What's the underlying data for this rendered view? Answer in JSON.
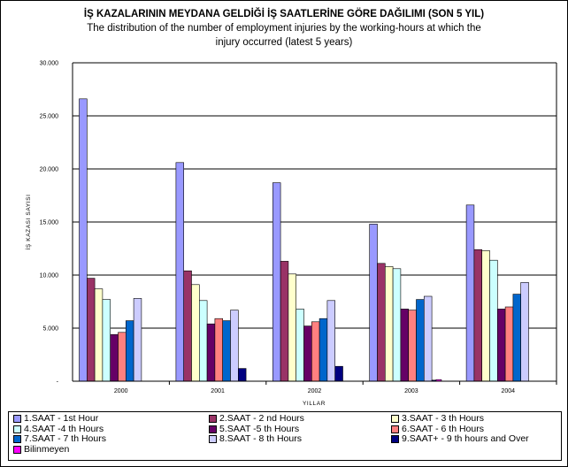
{
  "chart_data": {
    "type": "bar",
    "title": "İŞ KAZALARININ MEYDANA GELDİĞİ İŞ SAATLERİNE GÖRE DAĞILIMI (SON 5 YIL)",
    "subtitle_line1": "The distribution of the number of employment injuries by the working-hours at which the",
    "subtitle_line2": "injury occurred (latest 5 years)",
    "xlabel": "YILLAR",
    "ylabel": "İŞ KAZASI SAYISI",
    "ylim": [
      0,
      30000
    ],
    "yticks": [
      "-",
      "5.000",
      "10.000",
      "15.000",
      "20.000",
      "25.000",
      "30.000"
    ],
    "grid": true,
    "legend_position": "bottom",
    "categories": [
      "2000",
      "2001",
      "2002",
      "2003",
      "2004"
    ],
    "series": [
      {
        "name": "1.SAAT - 1st Hour",
        "color": "#9999ff",
        "values": [
          26600,
          20600,
          18700,
          14800,
          16600
        ]
      },
      {
        "name": "2.SAAT - 2 nd Hours",
        "color": "#993366",
        "values": [
          9700,
          10400,
          11300,
          11100,
          12400
        ]
      },
      {
        "name": "3.SAAT - 3 th Hours",
        "color": "#ffffcc",
        "values": [
          8700,
          9100,
          10100,
          10800,
          12300
        ]
      },
      {
        "name": "4.SAAT -4 th  Hours",
        "color": "#ccffff",
        "values": [
          7700,
          7600,
          6800,
          10600,
          11400
        ]
      },
      {
        "name": "5.SAAT -5 th  Hours",
        "color": "#660066",
        "values": [
          4400,
          5400,
          5200,
          6800,
          6800
        ]
      },
      {
        "name": "6.SAAT - 6 th  Hours",
        "color": "#ff8080",
        "values": [
          4600,
          5900,
          5600,
          6700,
          7000
        ]
      },
      {
        "name": "7.SAAT - 7 th  Hours",
        "color": "#0066cc",
        "values": [
          5700,
          5700,
          5900,
          7700,
          8200
        ]
      },
      {
        "name": "8.SAAT - 8 th Hours",
        "color": "#ccccff",
        "values": [
          7800,
          6700,
          7600,
          8000,
          9300
        ]
      },
      {
        "name": "9.SAAT+ - 9 th hours and Over",
        "color": "#000080",
        "values": [
          0,
          1200,
          1400,
          100,
          0
        ]
      },
      {
        "name": "Bilinmeyen",
        "color": "#ff00ff",
        "values": [
          0,
          0,
          0,
          150,
          0
        ]
      }
    ]
  }
}
